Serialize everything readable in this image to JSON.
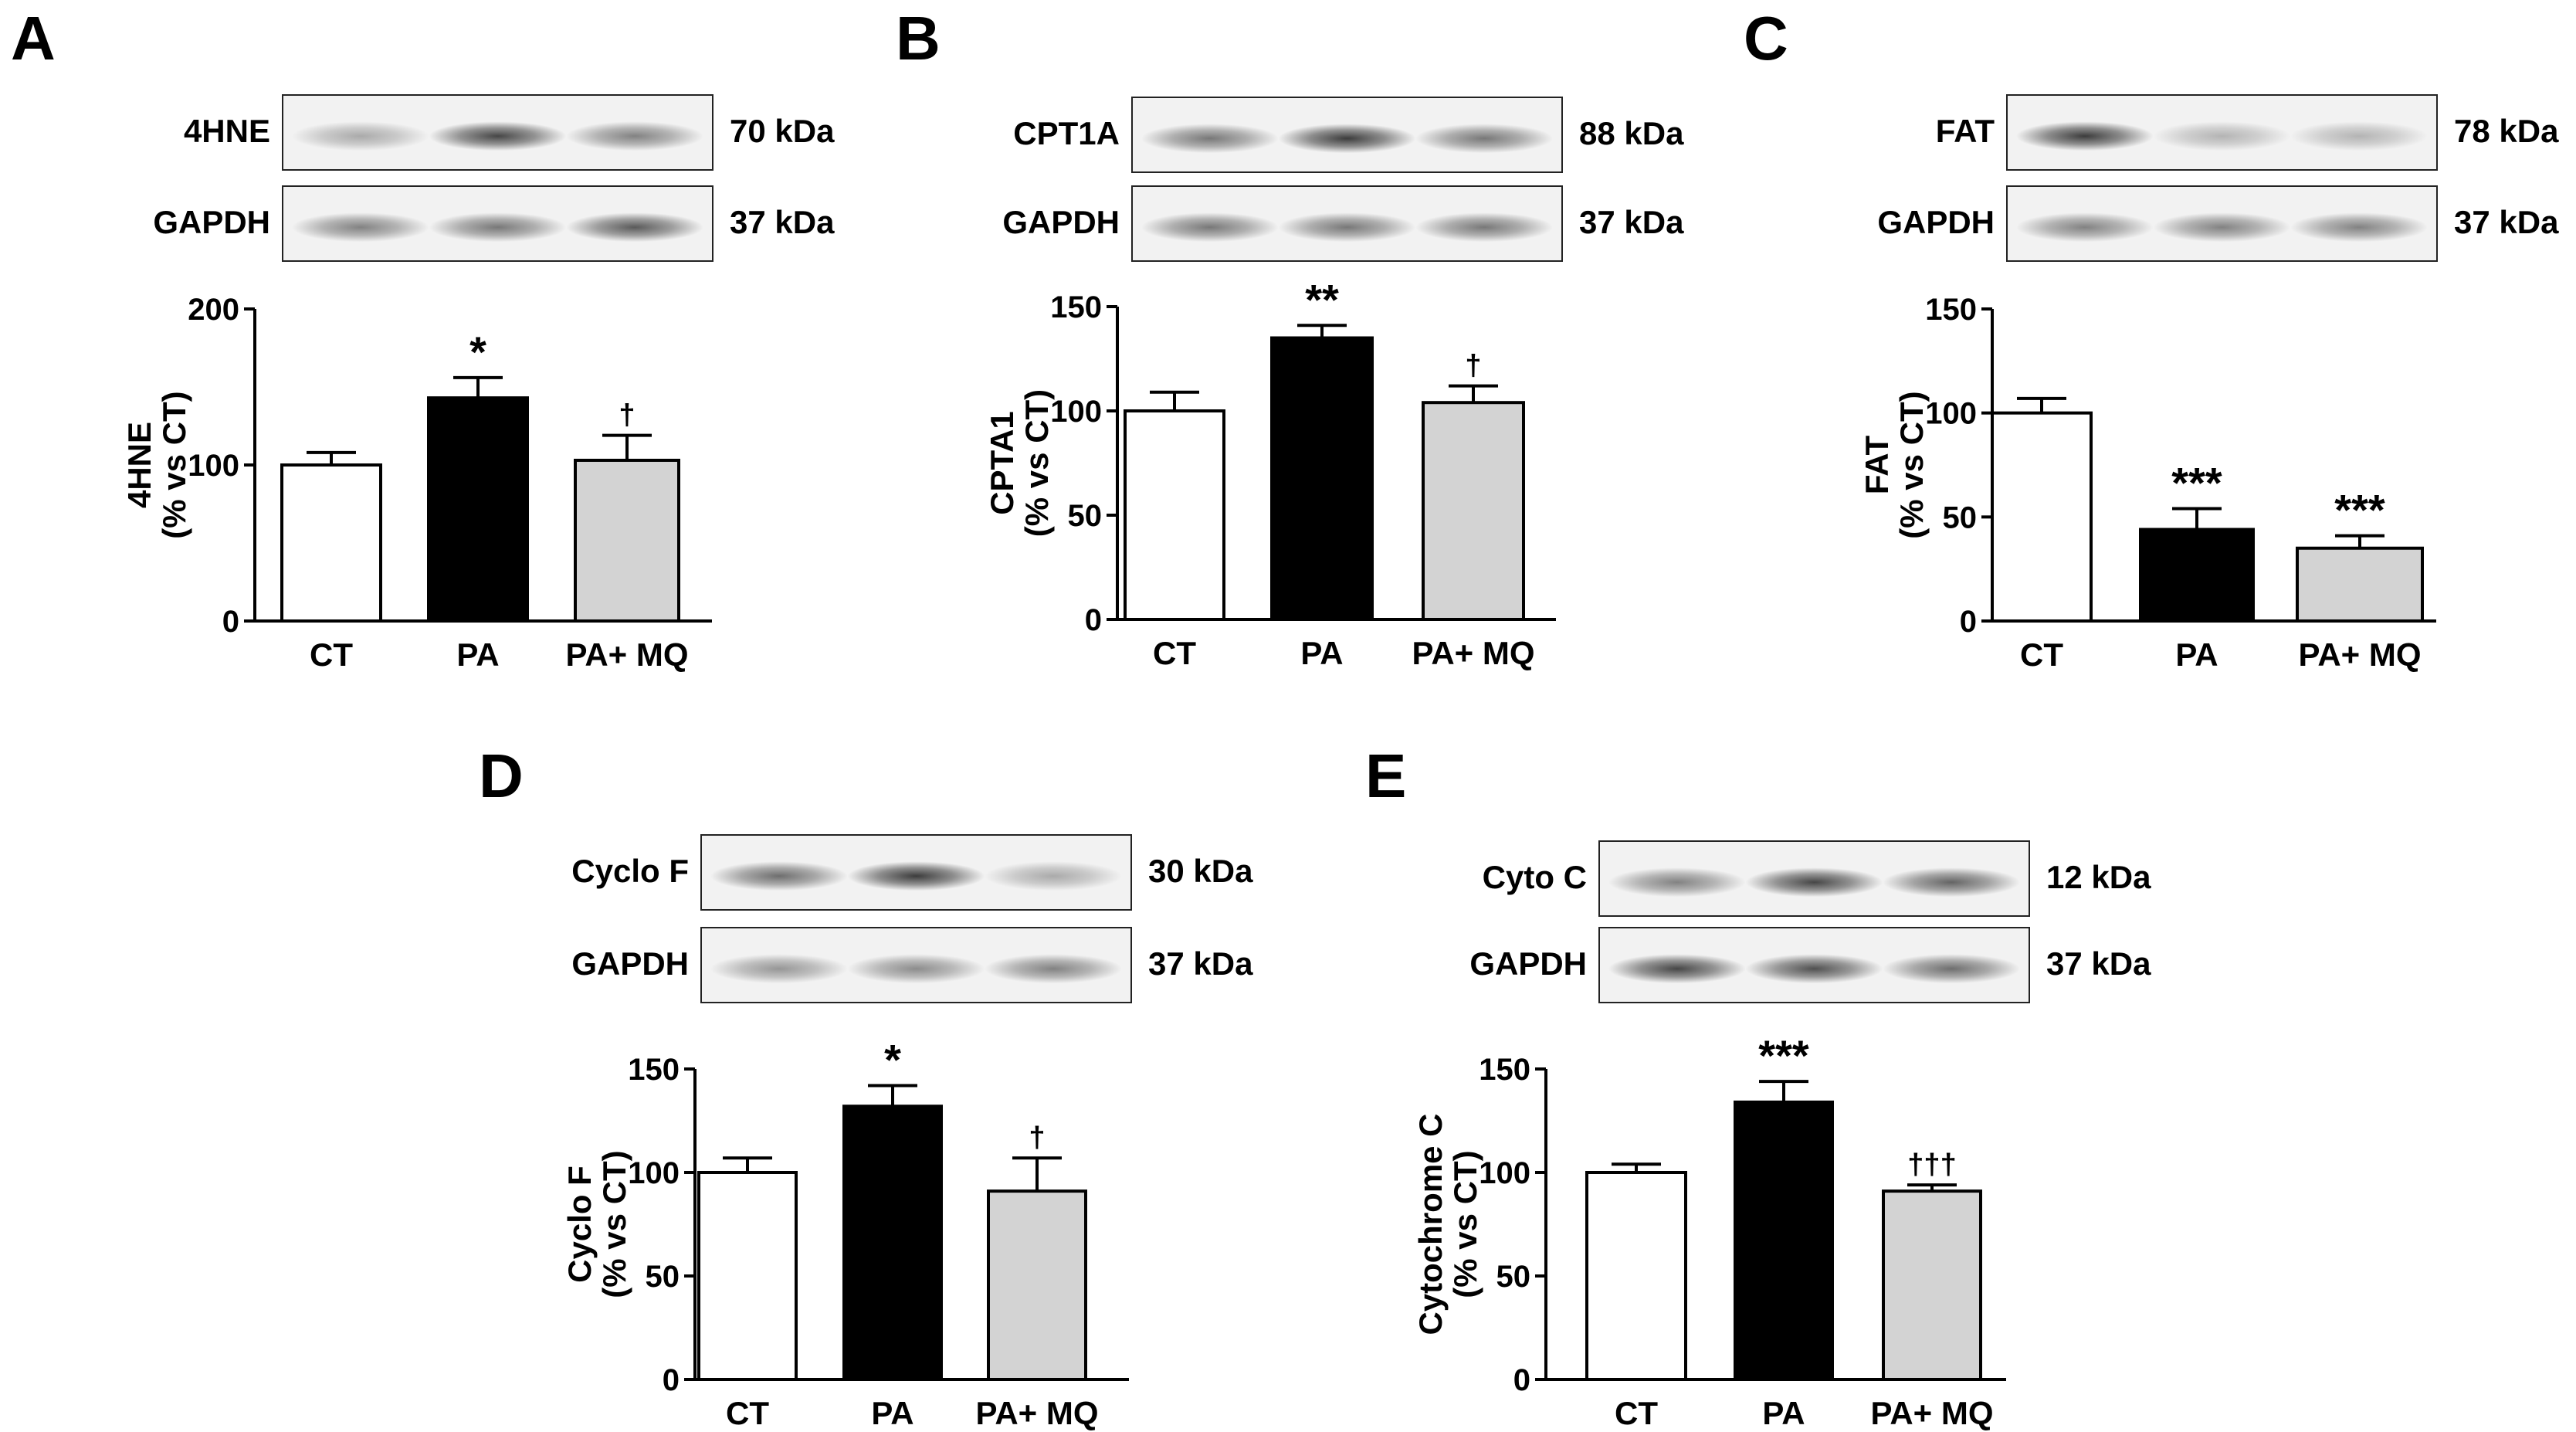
{
  "panels": [
    {
      "letter": "A",
      "blots": [
        {
          "label": "4HNE",
          "kda": "70 kDa",
          "intensity": [
            0.35,
            0.85,
            0.55
          ]
        },
        {
          "label": "GAPDH",
          "kda": "37 kDa",
          "intensity": [
            0.55,
            0.6,
            0.75
          ]
        }
      ]
    },
    {
      "letter": "B",
      "blots": [
        {
          "label": "CPT1A",
          "kda": "88 kDa",
          "intensity": [
            0.6,
            0.9,
            0.6
          ]
        },
        {
          "label": "GAPDH",
          "kda": "37 kDa",
          "intensity": [
            0.6,
            0.6,
            0.6
          ]
        }
      ]
    },
    {
      "letter": "C",
      "blots": [
        {
          "label": "FAT",
          "kda": "78 kDa",
          "intensity": [
            0.9,
            0.3,
            0.3
          ]
        },
        {
          "label": "GAPDH",
          "kda": "37 kDa",
          "intensity": [
            0.55,
            0.55,
            0.55
          ]
        }
      ]
    },
    {
      "letter": "D",
      "blots": [
        {
          "label": "Cyclo F",
          "kda": "30 kDa",
          "intensity": [
            0.65,
            0.9,
            0.35
          ]
        },
        {
          "label": "GAPDH",
          "kda": "37 kDa",
          "intensity": [
            0.45,
            0.5,
            0.55
          ]
        }
      ]
    },
    {
      "letter": "E",
      "blots": [
        {
          "label": "Cyto C",
          "kda": "12 kDa",
          "intensity": [
            0.55,
            0.85,
            0.7
          ]
        },
        {
          "label": "GAPDH",
          "kda": "37 kDa",
          "intensity": [
            0.85,
            0.8,
            0.65
          ]
        }
      ]
    }
  ],
  "colors": {
    "CT": "#ffffff",
    "PA": "#000000",
    "PA+ MQ": "#d3d3d3"
  },
  "chart_data": [
    {
      "type": "bar",
      "categories": [
        "CT",
        "PA",
        "PA+ MQ"
      ],
      "values": [
        100,
        143,
        103
      ],
      "errors": [
        8,
        13,
        16
      ],
      "significance": [
        "",
        "*",
        "†"
      ],
      "ylabel": "4HNE",
      "ylabel2": "(% vs CT)",
      "ylim": [
        0,
        200
      ],
      "yticks": [
        0,
        100,
        200
      ]
    },
    {
      "type": "bar",
      "categories": [
        "CT",
        "PA",
        "PA+ MQ"
      ],
      "values": [
        100,
        135,
        104
      ],
      "errors": [
        9,
        6,
        8
      ],
      "significance": [
        "",
        "**",
        "†"
      ],
      "ylabel": "CPTA1",
      "ylabel2": "(% vs CT)",
      "ylim": [
        0,
        150
      ],
      "yticks": [
        0,
        50,
        100,
        150
      ]
    },
    {
      "type": "bar",
      "categories": [
        "CT",
        "PA",
        "PA+ MQ"
      ],
      "values": [
        100,
        44,
        35
      ],
      "errors": [
        7,
        10,
        6
      ],
      "significance": [
        "",
        "***",
        "***"
      ],
      "ylabel": "FAT",
      "ylabel2": "(% vs CT)",
      "ylim": [
        0,
        150
      ],
      "yticks": [
        0,
        50,
        100,
        150
      ]
    },
    {
      "type": "bar",
      "categories": [
        "CT",
        "PA",
        "PA+ MQ"
      ],
      "values": [
        100,
        132,
        91
      ],
      "errors": [
        7,
        10,
        16
      ],
      "significance": [
        "",
        "*",
        "†"
      ],
      "ylabel": "Cyclo F",
      "ylabel2": "(% vs CT)",
      "ylim": [
        0,
        150
      ],
      "yticks": [
        0,
        50,
        100,
        150
      ]
    },
    {
      "type": "bar",
      "categories": [
        "CT",
        "PA",
        "PA+ MQ"
      ],
      "values": [
        100,
        134,
        91
      ],
      "errors": [
        4,
        10,
        3
      ],
      "significance": [
        "",
        "***",
        "†††"
      ],
      "ylabel": "Cytochrome C",
      "ylabel2": "(% vs CT)",
      "ylim": [
        0,
        150
      ],
      "yticks": [
        0,
        50,
        100,
        150
      ]
    }
  ]
}
